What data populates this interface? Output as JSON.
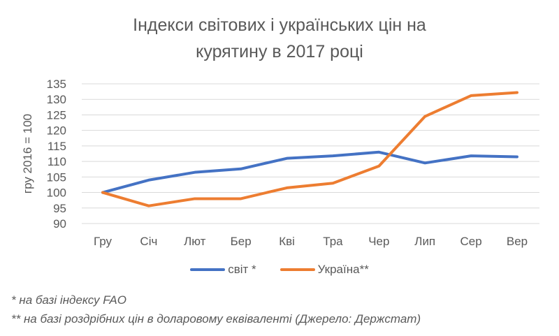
{
  "chart_data": {
    "type": "line",
    "title_line1": "Індекси світових і українських цін на",
    "title_line2": "курятину в 2017 році",
    "ylabel": "гру 2016 = 100",
    "xlabel": "",
    "categories": [
      "Гру",
      "Січ",
      "Лют",
      "Бер",
      "Кві",
      "Тра",
      "Чер",
      "Лип",
      "Сер",
      "Вер"
    ],
    "ylim": [
      90,
      135
    ],
    "yticks": [
      90,
      95,
      100,
      105,
      110,
      115,
      120,
      125,
      130,
      135
    ],
    "grid": true,
    "legend_position": "bottom",
    "series": [
      {
        "name": "світ *",
        "color": "#4472c4",
        "values": [
          100,
          104,
          106.5,
          107.6,
          111,
          111.8,
          113,
          109.5,
          111.8,
          111.5
        ]
      },
      {
        "name": "Україна**",
        "color": "#ed7d31",
        "values": [
          100,
          95.7,
          98,
          98,
          101.5,
          103,
          108.5,
          124.5,
          131.2,
          132.2
        ]
      }
    ]
  },
  "notes": [
    "* на базі індексу FAO",
    "** на базі роздрібних цін в доларовому еквіваленті (Джерело: Держстат)"
  ]
}
